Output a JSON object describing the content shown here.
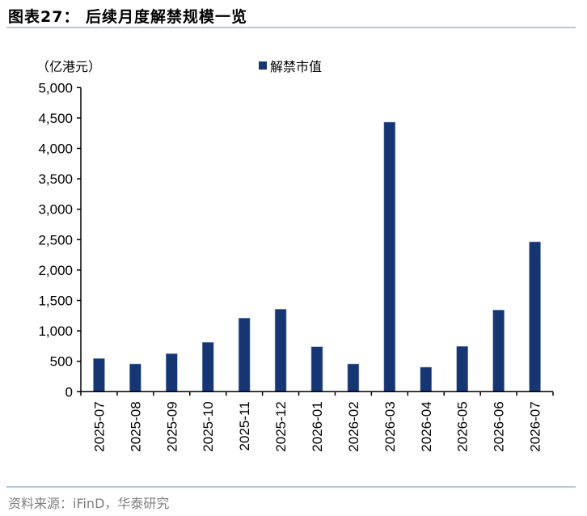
{
  "header": {
    "title": "图表27：  后续月度解禁规模一览"
  },
  "footer": {
    "source": "资料来源：iFinD，华泰研究"
  },
  "colors": {
    "bar": "#163673",
    "rule": "#bac6d6",
    "source_text": "#7f7f7f"
  },
  "chart_data": {
    "type": "bar",
    "title": "后续月度解禁规模一览",
    "xlabel": "",
    "ylabel": "（亿港元）",
    "ylim": [
      0,
      5000
    ],
    "yticks": [
      0,
      500,
      1000,
      1500,
      2000,
      2500,
      3000,
      3500,
      4000,
      4500,
      5000
    ],
    "ytick_labels": [
      "0",
      "500",
      "1,000",
      "1,500",
      "2,000",
      "2,500",
      "3,000",
      "3,500",
      "4,000",
      "4,500",
      "5,000"
    ],
    "grid": false,
    "legend_position": "top-center",
    "categories": [
      "2025-07",
      "2025-08",
      "2025-09",
      "2025-10",
      "2025-11",
      "2025-12",
      "2026-01",
      "2026-02",
      "2026-03",
      "2026-04",
      "2026-05",
      "2026-06",
      "2026-07"
    ],
    "series": [
      {
        "name": "解禁市值",
        "color": "#163673",
        "values": [
          545,
          456,
          625,
          811,
          1210,
          1356,
          739,
          456,
          4432,
          403,
          745,
          1343,
          2464
        ]
      }
    ]
  }
}
